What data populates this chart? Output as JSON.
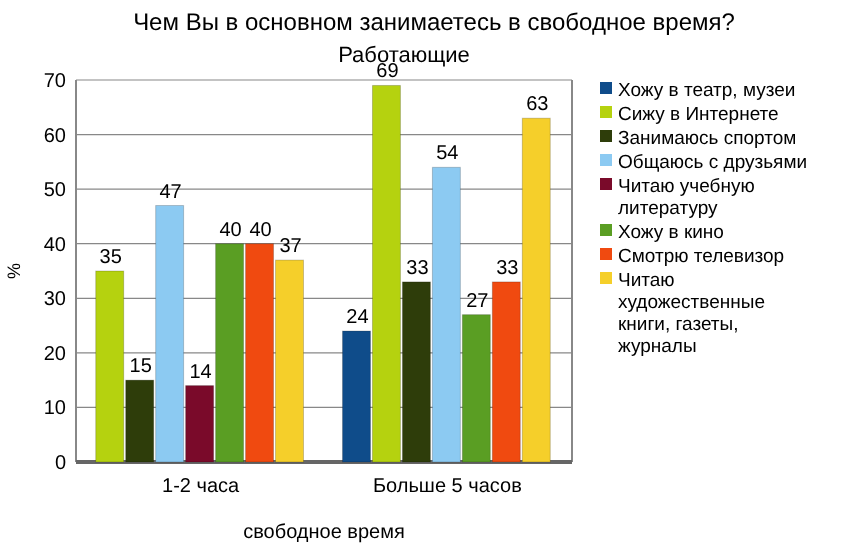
{
  "chart_data": {
    "type": "bar",
    "title": "Чем Вы в основном занимаетесь в свободное время?",
    "subtitle": "Работающие",
    "xlabel": "свободное время",
    "ylabel": "%",
    "categories": [
      "1-2 часа",
      "Больше 5 часов"
    ],
    "series": [
      {
        "name": "Хожу в театр, музеи",
        "color": "#0f4c8a",
        "values": [
          null,
          24
        ]
      },
      {
        "name": "Сижу в Интернете",
        "color": "#b5d20f",
        "values": [
          35,
          69
        ]
      },
      {
        "name": "Занимаюсь спортом",
        "color": "#2e3d0a",
        "values": [
          15,
          33
        ]
      },
      {
        "name": "Общаюсь с друзьями",
        "color": "#8ccaf2",
        "values": [
          47,
          54
        ]
      },
      {
        "name": "Читаю учебную литературу",
        "color": "#7a0a2a",
        "values": [
          14,
          null
        ]
      },
      {
        "name": "Хожу в кино",
        "color": "#5a9e23",
        "values": [
          40,
          27
        ]
      },
      {
        "name": "Смотрю телевизор",
        "color": "#f04a10",
        "values": [
          40,
          33
        ]
      },
      {
        "name": "Читаю художественные книги, газеты, журналы",
        "color": "#f5cf2a",
        "values": [
          37,
          63
        ]
      }
    ],
    "ylim": [
      0,
      70
    ],
    "yticks": [
      0,
      10,
      20,
      30,
      40,
      50,
      60,
      70
    ],
    "grid": "y",
    "legend": "right",
    "data_labels": true
  }
}
